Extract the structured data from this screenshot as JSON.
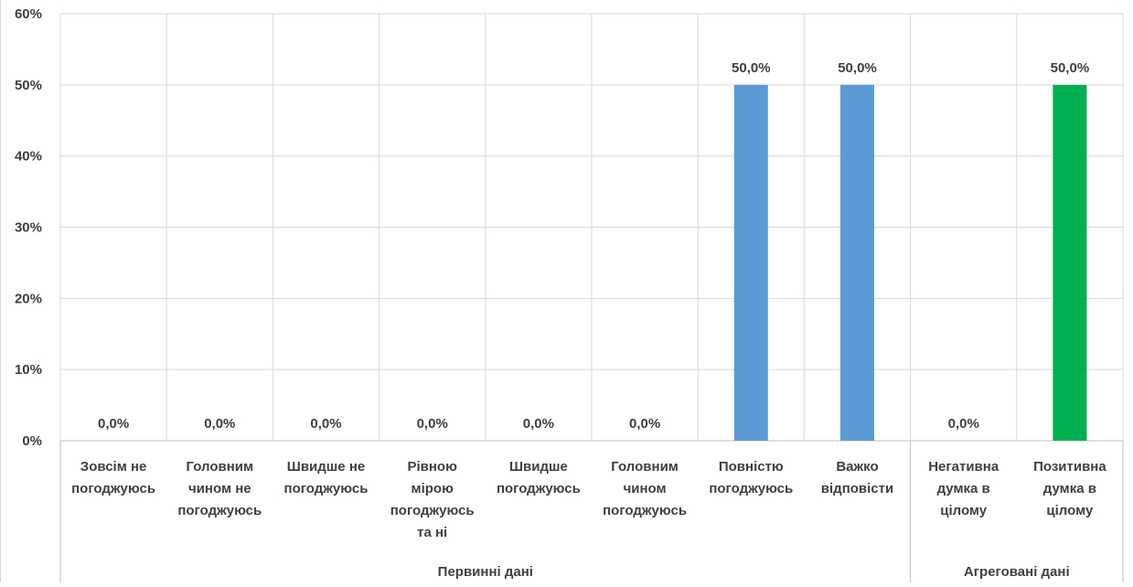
{
  "chart_data": {
    "type": "bar",
    "title": "",
    "xlabel": "",
    "ylabel": "",
    "ylim": [
      0,
      60
    ],
    "y_ticks": [
      "0%",
      "10%",
      "20%",
      "30%",
      "40%",
      "50%",
      "60%"
    ],
    "grid": true,
    "categories": [
      [
        "Зовсім не",
        "погоджуюсь"
      ],
      [
        "Головним",
        "чином не",
        "погоджуюсь"
      ],
      [
        "Швидше не",
        "погоджуюсь"
      ],
      [
        "Рівною",
        "мірою",
        "погоджуюсь",
        "та ні"
      ],
      [
        "Швидше",
        "погоджуюсь"
      ],
      [
        "Головним",
        "чином",
        "погоджуюсь"
      ],
      [
        "Повністю",
        "погоджуюсь"
      ],
      [
        "Важко",
        "відповісти"
      ],
      [
        "Негативна",
        "думка в",
        "цілому"
      ],
      [
        "Позитивна",
        "думка в",
        "цілому"
      ]
    ],
    "values": [
      0,
      0,
      0,
      0,
      0,
      0,
      50,
      50,
      0,
      50
    ],
    "data_labels": [
      "0,0%",
      "0,0%",
      "0,0%",
      "0,0%",
      "0,0%",
      "0,0%",
      "50,0%",
      "50,0%",
      "0,0%",
      "50,0%"
    ],
    "bar_colors": [
      "#5b9bd5",
      "#5b9bd5",
      "#5b9bd5",
      "#5b9bd5",
      "#5b9bd5",
      "#5b9bd5",
      "#5b9bd5",
      "#5b9bd5",
      "#00b050",
      "#00b050"
    ],
    "groups": [
      {
        "label": "Первинні дані",
        "start": 0,
        "end": 7
      },
      {
        "label": "Агреговані дані",
        "start": 8,
        "end": 9
      }
    ],
    "gridline_color": "#d9d9d9",
    "text_color": "#404040"
  }
}
